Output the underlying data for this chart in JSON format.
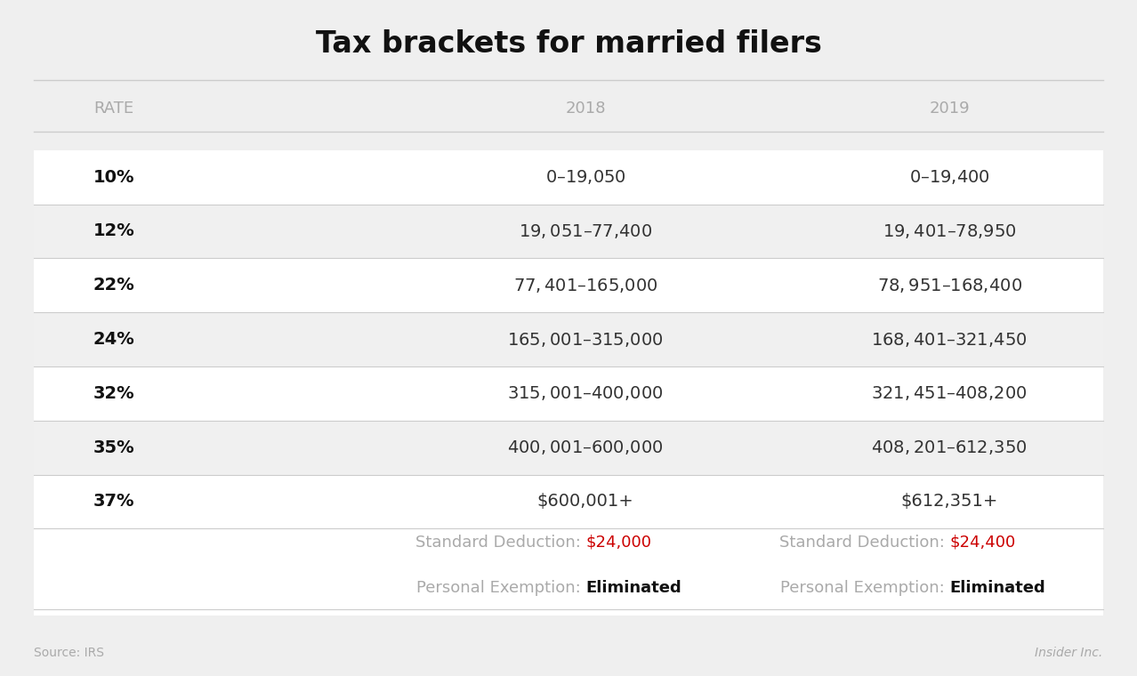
{
  "title": "Tax brackets for married filers",
  "background_color": "#efefef",
  "header_row": [
    "RATE",
    "2018",
    "2019"
  ],
  "rows": [
    [
      "10%",
      "$0 – $19,050",
      "$0 – $19,400"
    ],
    [
      "12%",
      "$19,051 – $77,400",
      "$19,401 – $78,950"
    ],
    [
      "22%",
      "$77,401 – $165,000",
      "$78,951 – $168,400"
    ],
    [
      "24%",
      "$165,001 – $315,000",
      "$168,401 – $321,450"
    ],
    [
      "32%",
      "$315,001 – $400,000",
      "$321,451 – $408,200"
    ],
    [
      "35%",
      "$400,001–$600,000",
      "$408,201 – $612,350"
    ],
    [
      "37%",
      "$600,001+",
      "$612,351+"
    ]
  ],
  "footer_rows": [
    {
      "col1_label": "Standard Deduction: ",
      "col1_value": "$24,000",
      "col1_value_color": "red",
      "col1_value_weight": "normal",
      "col2_label": "Standard Deduction: ",
      "col2_value": "$24,400",
      "col2_value_color": "red",
      "col2_value_weight": "normal"
    },
    {
      "col1_label": "Personal Exemption: ",
      "col1_value": "Eliminated",
      "col1_value_color": "black",
      "col1_value_weight": "bold",
      "col2_label": "Personal Exemption: ",
      "col2_value": "Eliminated",
      "col2_value_color": "black",
      "col2_value_weight": "bold"
    }
  ],
  "source_text": "Source: IRS",
  "brand_text": "Insider Inc.",
  "header_text_color": "#aaaaaa",
  "rate_bold_color": "#111111",
  "data_text_color": "#333333",
  "red_color": "#cc0000",
  "divider_color": "#cccccc",
  "row_bg_white": "#ffffff",
  "row_bg_light": "#f0f0f0",
  "title_fontsize": 24,
  "header_fontsize": 13,
  "data_fontsize": 14,
  "footer_label_fontsize": 13,
  "footer_value_fontsize": 13
}
